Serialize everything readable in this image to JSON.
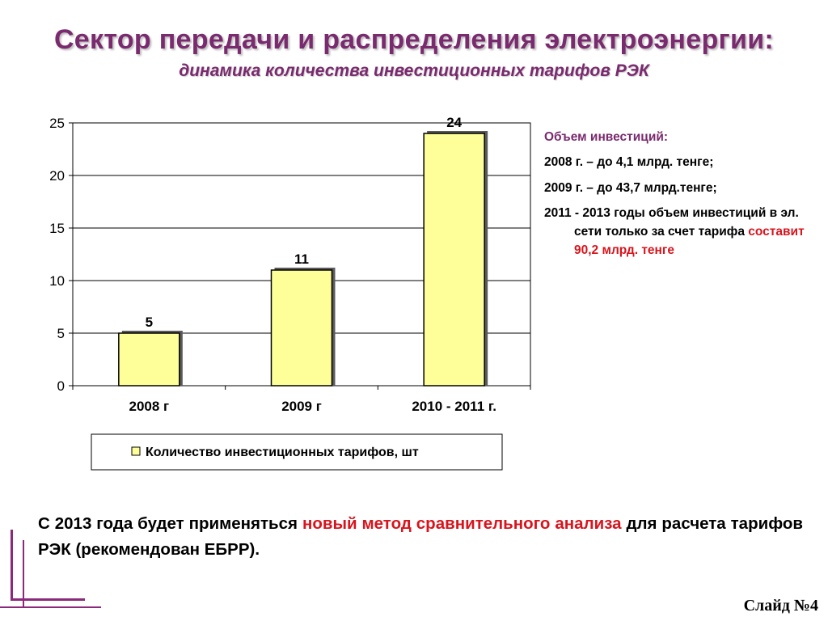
{
  "header": {
    "title": "Сектор передачи и распределения электроэнергии:",
    "subtitle": "динамика количества инвестиционных тарифов РЭК"
  },
  "chart_data": {
    "type": "bar",
    "categories": [
      "2008 г",
      "2009 г",
      "2010 - 2011 г."
    ],
    "series": [
      {
        "name": "Количество инвестиционных тарифов, шт",
        "values": [
          5,
          11,
          24
        ],
        "data_labels": [
          "5",
          "11",
          "24"
        ]
      }
    ],
    "y_ticks": [
      "0",
      "5",
      "10",
      "15",
      "20",
      "25"
    ],
    "ylim": [
      0,
      25
    ],
    "grid": true,
    "legend_position": "bottom",
    "colors": {
      "bar_fill": "#ffff99",
      "bar_stroke": "#000000",
      "legend_box": "#ffff99"
    }
  },
  "side_note": {
    "heading": "Объем инвестиций:",
    "line1": "2008 г. – до 4,1 млрд. тенге;",
    "line2": "2009 г. – до 43,7 млрд.тенге;",
    "line3_a": "2011 - 2013 годы объем инвестиций в эл. сети только за счет тарифа",
    "line3_b": "составит 90,2 млрд. тенге"
  },
  "bottom_text": {
    "part1": "С 2013 года будет применяться ",
    "highlight": "новый метод сравнительного анализа",
    "part2": " для расчета тарифов РЭК (рекомендован ЕБРР)."
  },
  "footer": {
    "slide_number": "Слайд №4"
  },
  "colors": {
    "title": "#7a2a6e",
    "accent_red": "#d8141c",
    "decor": "#8b2a7a"
  }
}
